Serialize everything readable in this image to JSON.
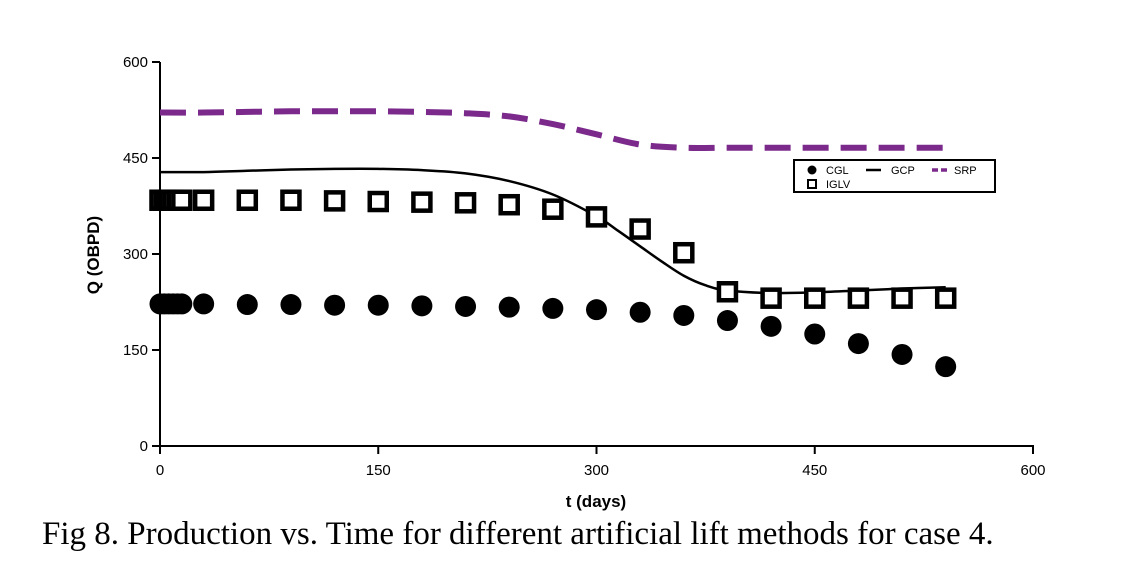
{
  "caption": "Fig 8. Production vs. Time for different artificial lift methods for case 4.",
  "colors": {
    "axis": "#000000",
    "cgl": "#000000",
    "iglv": "#000000",
    "gcp": "#000000",
    "srp": "#7b2a8c"
  },
  "chart_data": {
    "type": "scatter",
    "title": "",
    "xlabel": "t (days)",
    "ylabel": "Q (OBPD)",
    "xlim": [
      0,
      600
    ],
    "ylim": [
      0,
      600
    ],
    "x_ticks": [
      0,
      150,
      300,
      450,
      600
    ],
    "y_ticks": [
      0,
      150,
      300,
      450,
      600
    ],
    "legend_position": "top-right",
    "series": [
      {
        "name": "CGL",
        "style": "filled-circle-markers",
        "x": [
          0,
          3,
          6,
          9,
          12,
          15,
          30,
          60,
          90,
          120,
          150,
          180,
          210,
          240,
          270,
          300,
          330,
          360,
          390,
          420,
          450,
          480,
          510,
          540
        ],
        "y": [
          222,
          222,
          222,
          222,
          222,
          222,
          222,
          221,
          221,
          220,
          220,
          219,
          218,
          217,
          215,
          213,
          209,
          204,
          196,
          187,
          175,
          160,
          143,
          124
        ]
      },
      {
        "name": "IGLV",
        "style": "open-square-markers",
        "x": [
          0,
          3,
          6,
          9,
          12,
          15,
          30,
          60,
          90,
          120,
          150,
          180,
          210,
          240,
          270,
          300,
          330,
          360,
          390,
          420,
          450,
          480,
          510,
          540
        ],
        "y": [
          384,
          384,
          384,
          384,
          384,
          384,
          384,
          384,
          384,
          383,
          382,
          381,
          380,
          377,
          370,
          358,
          339,
          302,
          241,
          231,
          231,
          231,
          231,
          231
        ]
      },
      {
        "name": "GCP",
        "style": "solid-line",
        "x": [
          0,
          30,
          60,
          90,
          120,
          150,
          180,
          210,
          240,
          270,
          300,
          315,
          330,
          345,
          360,
          375,
          390,
          420,
          450,
          480,
          510,
          540
        ],
        "y": [
          428,
          428,
          430,
          432,
          433,
          433,
          431,
          426,
          414,
          393,
          359,
          336,
          312,
          288,
          266,
          251,
          243,
          239,
          240,
          243,
          246,
          248
        ]
      },
      {
        "name": "SRP",
        "style": "dashed-line",
        "x": [
          0,
          30,
          60,
          90,
          120,
          150,
          180,
          210,
          240,
          270,
          300,
          330,
          360,
          390,
          420,
          450,
          480,
          510,
          540
        ],
        "y": [
          521,
          521,
          522,
          523,
          523,
          523,
          522,
          520,
          515,
          503,
          487,
          471,
          466,
          466,
          466,
          466,
          466,
          466,
          466
        ]
      }
    ]
  }
}
